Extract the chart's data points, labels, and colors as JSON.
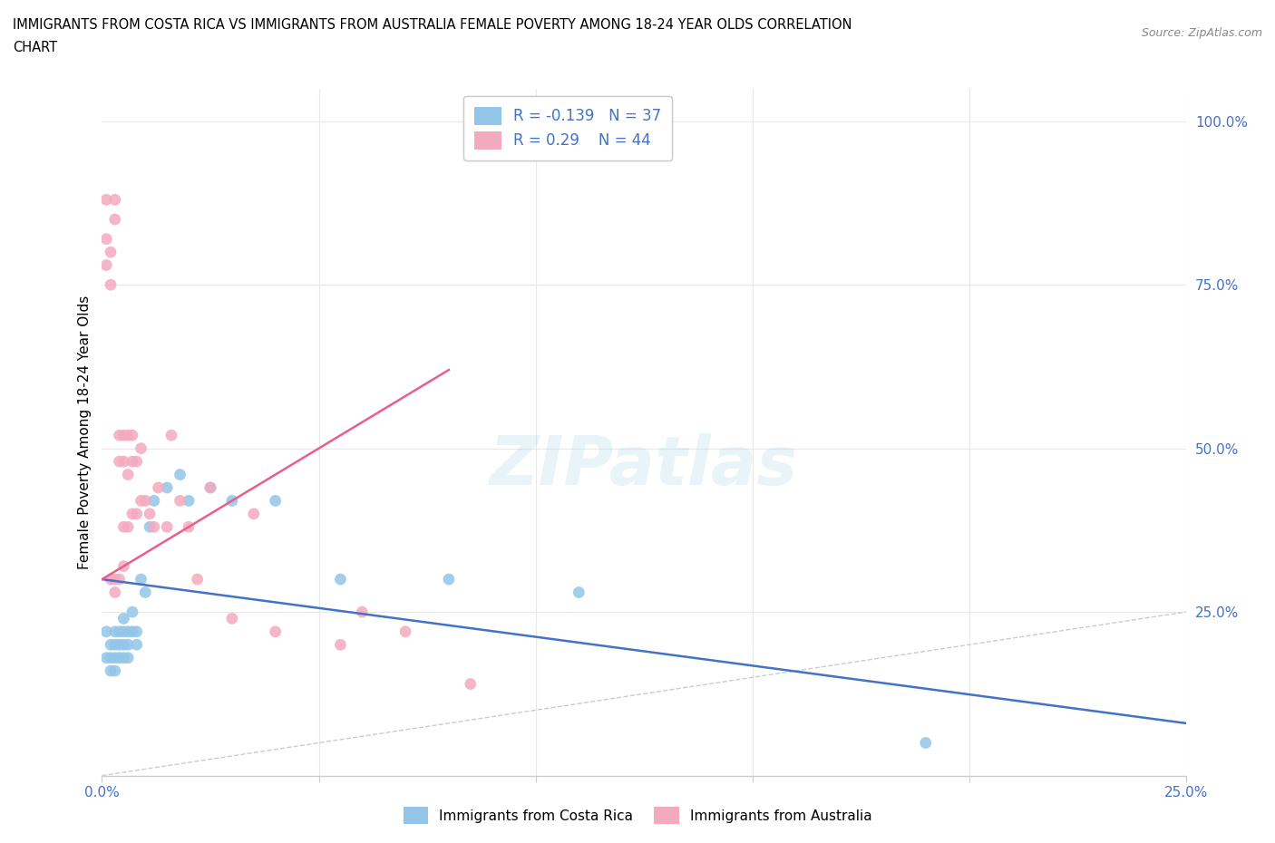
{
  "title_line1": "IMMIGRANTS FROM COSTA RICA VS IMMIGRANTS FROM AUSTRALIA FEMALE POVERTY AMONG 18-24 YEAR OLDS CORRELATION",
  "title_line2": "CHART",
  "source": "Source: ZipAtlas.com",
  "ylabel": "Female Poverty Among 18-24 Year Olds",
  "xlim": [
    0.0,
    0.25
  ],
  "ylim": [
    0.0,
    1.05
  ],
  "costa_rica_color": "#92C5E8",
  "australia_color": "#F4AABE",
  "trend_costa_rica_color": "#4472C4",
  "trend_australia_color": "#E8608A",
  "diag_color": "#CCCCCC",
  "R_costa_rica": -0.139,
  "N_costa_rica": 37,
  "R_australia": 0.29,
  "N_australia": 44,
  "legend_label_costa_rica": "Immigrants from Costa Rica",
  "legend_label_australia": "Immigrants from Australia",
  "costa_rica_x": [
    0.001,
    0.001,
    0.002,
    0.002,
    0.002,
    0.003,
    0.003,
    0.003,
    0.003,
    0.004,
    0.004,
    0.004,
    0.005,
    0.005,
    0.005,
    0.005,
    0.006,
    0.006,
    0.006,
    0.007,
    0.007,
    0.008,
    0.008,
    0.009,
    0.01,
    0.011,
    0.012,
    0.015,
    0.018,
    0.02,
    0.025,
    0.03,
    0.04,
    0.055,
    0.08,
    0.11,
    0.19
  ],
  "costa_rica_y": [
    0.18,
    0.22,
    0.2,
    0.18,
    0.16,
    0.2,
    0.22,
    0.18,
    0.16,
    0.2,
    0.22,
    0.18,
    0.24,
    0.22,
    0.2,
    0.18,
    0.22,
    0.2,
    0.18,
    0.25,
    0.22,
    0.2,
    0.22,
    0.3,
    0.28,
    0.38,
    0.42,
    0.44,
    0.46,
    0.42,
    0.44,
    0.42,
    0.42,
    0.3,
    0.3,
    0.28,
    0.05
  ],
  "australia_x": [
    0.001,
    0.001,
    0.001,
    0.002,
    0.002,
    0.002,
    0.003,
    0.003,
    0.003,
    0.003,
    0.004,
    0.004,
    0.004,
    0.005,
    0.005,
    0.005,
    0.005,
    0.006,
    0.006,
    0.006,
    0.007,
    0.007,
    0.007,
    0.008,
    0.008,
    0.009,
    0.009,
    0.01,
    0.011,
    0.012,
    0.013,
    0.015,
    0.016,
    0.018,
    0.02,
    0.022,
    0.025,
    0.03,
    0.035,
    0.04,
    0.055,
    0.06,
    0.07,
    0.085
  ],
  "australia_y": [
    0.88,
    0.82,
    0.78,
    0.8,
    0.75,
    0.3,
    0.88,
    0.85,
    0.3,
    0.28,
    0.52,
    0.48,
    0.3,
    0.52,
    0.48,
    0.38,
    0.32,
    0.52,
    0.46,
    0.38,
    0.52,
    0.48,
    0.4,
    0.48,
    0.4,
    0.5,
    0.42,
    0.42,
    0.4,
    0.38,
    0.44,
    0.38,
    0.52,
    0.42,
    0.38,
    0.3,
    0.44,
    0.24,
    0.4,
    0.22,
    0.2,
    0.25,
    0.22,
    0.14
  ]
}
